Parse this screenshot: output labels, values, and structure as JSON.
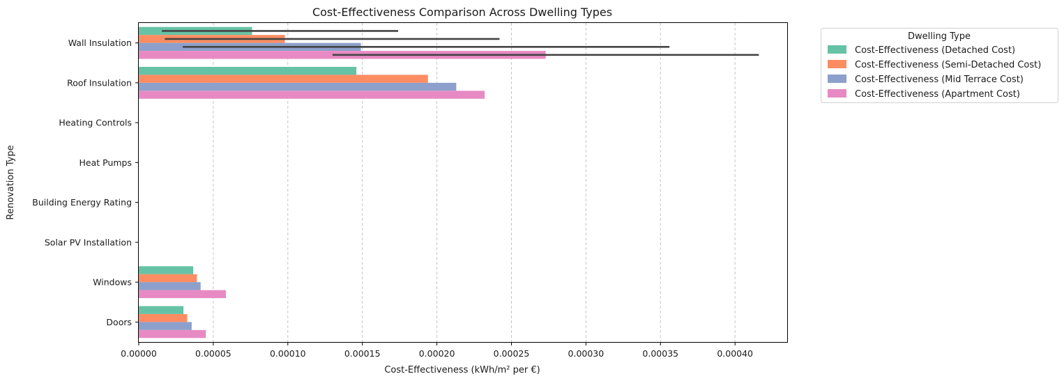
{
  "chart_data": {
    "type": "bar",
    "orientation": "horizontal",
    "title": "Cost-Effectiveness Comparison Across Dwelling Types",
    "xlabel": "Cost-Effectiveness (kWh/m² per €)",
    "ylabel": "Renovation Type",
    "xlim": [
      0,
      0.000435
    ],
    "x_ticks": [
      0,
      5e-05,
      0.0001,
      0.00015,
      0.0002,
      0.00025,
      0.0003,
      0.00035,
      0.0004
    ],
    "x_tick_labels": [
      "0.00000",
      "0.00005",
      "0.00010",
      "0.00015",
      "0.00020",
      "0.00025",
      "0.00030",
      "0.00035",
      "0.00040"
    ],
    "grid": "vertical-dashed",
    "legend_title": "Dwelling Type",
    "legend_position": "outside-upper-right",
    "categories": [
      "Wall Insulation",
      "Roof Insulation",
      "Heating Controls",
      "Heat Pumps",
      "Building Energy Rating",
      "Solar PV Installation",
      "Windows",
      "Doors"
    ],
    "series": [
      {
        "name": "Cost-Effectiveness (Detached Cost)",
        "color": "#66c2a5",
        "values": [
          7.6e-05,
          0.000146,
          0,
          0,
          0,
          0,
          3.65e-05,
          3e-05
        ]
      },
      {
        "name": "Cost-Effectiveness (Semi-Detached Cost)",
        "color": "#fc8d62",
        "values": [
          9.8e-05,
          0.000194,
          0,
          0,
          0,
          0,
          3.9e-05,
          3.25e-05
        ]
      },
      {
        "name": "Cost-Effectiveness (Mid Terrace Cost)",
        "color": "#8da0cb",
        "values": [
          0.000149,
          0.000213,
          0,
          0,
          0,
          0,
          4.15e-05,
          3.55e-05
        ]
      },
      {
        "name": "Cost-Effectiveness (Apartment Cost)",
        "color": "#e78ac3",
        "values": [
          0.000273,
          0.000232,
          0,
          0,
          0,
          0,
          5.85e-05,
          4.5e-05
        ]
      }
    ],
    "error_bars": [
      {
        "category": "Wall Insulation",
        "series": "Cost-Effectiveness (Detached Cost)",
        "low": 1.55e-05,
        "high": 0.000174
      },
      {
        "category": "Wall Insulation",
        "series": "Cost-Effectiveness (Semi-Detached Cost)",
        "low": 1.75e-05,
        "high": 0.000242
      },
      {
        "category": "Wall Insulation",
        "series": "Cost-Effectiveness (Mid Terrace Cost)",
        "low": 2.95e-05,
        "high": 0.000356
      },
      {
        "category": "Wall Insulation",
        "series": "Cost-Effectiveness (Apartment Cost)",
        "low": 0.00013,
        "high": 0.000416
      }
    ],
    "error_bar_color": "#444444"
  }
}
